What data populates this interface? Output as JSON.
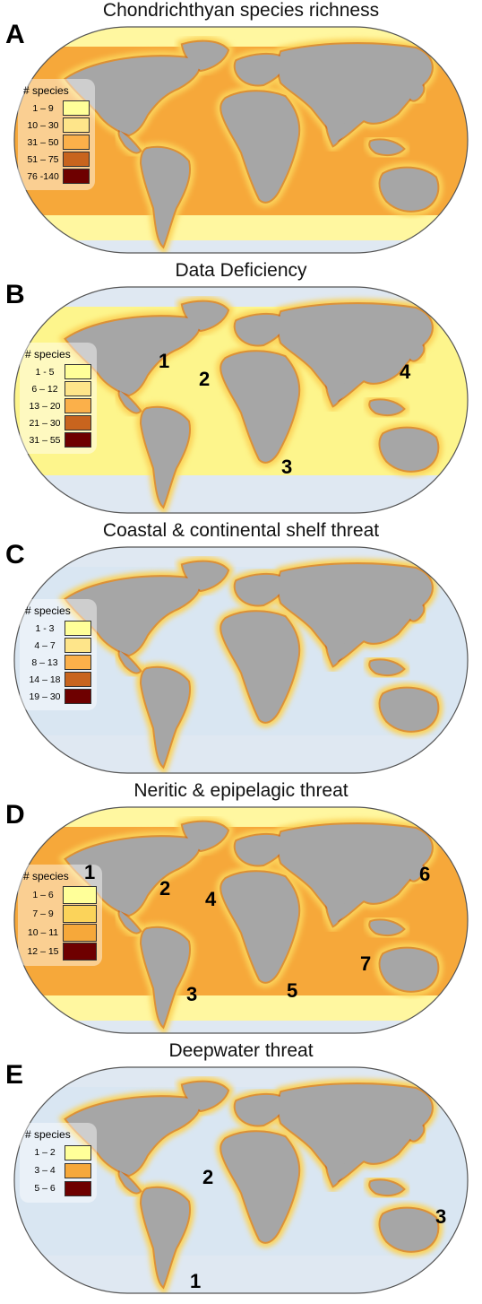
{
  "panels": [
    {
      "letter": "A",
      "title": "Chondrichthyan species richness",
      "legend_title": "# species",
      "ocean_color": "#f6a83a",
      "legend": [
        {
          "label": "1 – 9",
          "color": "#ffff99"
        },
        {
          "label": "10 – 30",
          "color": "#fee58a"
        },
        {
          "label": "31 – 50",
          "color": "#fbb04a"
        },
        {
          "label": "51 – 75",
          "color": "#c8641e"
        },
        {
          "label": "76 -140",
          "color": "#6e0000"
        }
      ],
      "numbers": []
    },
    {
      "letter": "B",
      "title": "Data Deficiency",
      "legend_title": "# species",
      "ocean_color": "#fdf58c",
      "legend": [
        {
          "label": "1 - 5",
          "color": "#ffff99"
        },
        {
          "label": "6 – 12",
          "color": "#fee58a"
        },
        {
          "label": "13 – 20",
          "color": "#fbb04a"
        },
        {
          "label": "21 – 30",
          "color": "#c8641e"
        },
        {
          "label": "31 – 55",
          "color": "#6e0000"
        }
      ],
      "numbers": [
        "1",
        "2",
        "3",
        "4"
      ]
    },
    {
      "letter": "C",
      "title": "Coastal & continental shelf threat",
      "legend_title": "# species",
      "ocean_color": "#d9e6f2",
      "legend": [
        {
          "label": "1 - 3",
          "color": "#ffff99"
        },
        {
          "label": "4 – 7",
          "color": "#fee58a"
        },
        {
          "label": "8 – 13",
          "color": "#fbb04a"
        },
        {
          "label": "14 – 18",
          "color": "#c8641e"
        },
        {
          "label": "19 – 30",
          "color": "#6e0000"
        }
      ],
      "numbers": []
    },
    {
      "letter": "D",
      "title": "Neritic & epipelagic threat",
      "legend_title": "# species",
      "ocean_color": "#f6a83a",
      "legend": [
        {
          "label": "1 – 6",
          "color": "#ffff99"
        },
        {
          "label": "7 – 9",
          "color": "#fbd35a"
        },
        {
          "label": "10 – 11",
          "color": "#f6a83a"
        },
        {
          "label": "12 – 15",
          "color": "#6e0000"
        }
      ],
      "numbers": [
        "1",
        "2",
        "3",
        "4",
        "5",
        "6",
        "7"
      ]
    },
    {
      "letter": "E",
      "title": "Deepwater threat",
      "legend_title": "# species",
      "ocean_color": "#d9e6f2",
      "legend": [
        {
          "label": "1 – 2",
          "color": "#ffff99"
        },
        {
          "label": "3 – 4",
          "color": "#f6a83a"
        },
        {
          "label": "5 – 6",
          "color": "#6e0000"
        }
      ],
      "numbers": [
        "1",
        "2",
        "3"
      ]
    }
  ],
  "colors": {
    "land": "#a6a6a6",
    "polar": "#dfe8f2",
    "coast_hot": "#6e0000",
    "coast_warm": "#c8641e",
    "coast_glow": "#fbd35a"
  }
}
